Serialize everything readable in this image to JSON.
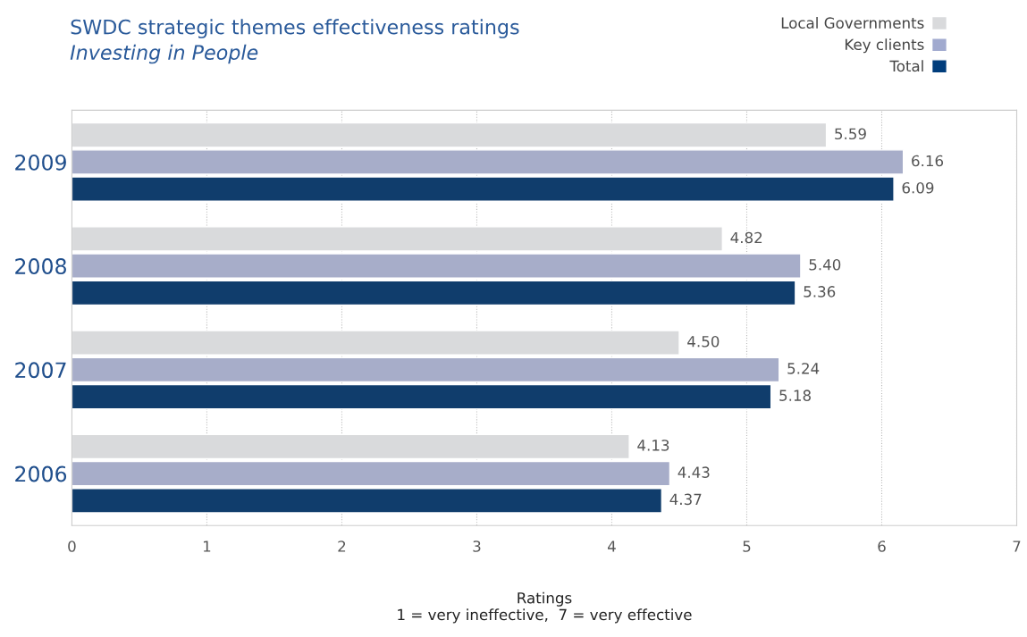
{
  "chart_data": {
    "type": "bar",
    "orientation": "horizontal",
    "title": "SWDC strategic themes effectiveness ratings",
    "subtitle": "Investing in People",
    "xlabel": "Ratings\n1 = very ineffective,  7 = very effective",
    "categories": [
      "2009",
      "2008",
      "2007",
      "2006"
    ],
    "series": [
      {
        "name": "Local Governments",
        "color": "#d9dadc",
        "values": [
          5.59,
          4.82,
          4.5,
          4.13
        ],
        "value_labels": [
          "5.59",
          "4.82",
          "4.50",
          "4.13"
        ]
      },
      {
        "name": "Key clients",
        "color": "#a1aacf",
        "values": [
          6.16,
          5.4,
          5.24,
          4.43
        ],
        "value_labels": [
          "6.16",
          "5.40",
          "5.24",
          "4.43"
        ]
      },
      {
        "name": "Total",
        "color": "#003d7c",
        "values": [
          6.09,
          5.36,
          5.18,
          4.37
        ],
        "value_labels": [
          "6.09",
          "5.36",
          "5.18",
          "4.37"
        ]
      }
    ],
    "xlim": [
      0,
      7
    ],
    "xticks": [
      0,
      1,
      2,
      3,
      4,
      5,
      6,
      7
    ],
    "grid": "x",
    "legend": "top right"
  }
}
